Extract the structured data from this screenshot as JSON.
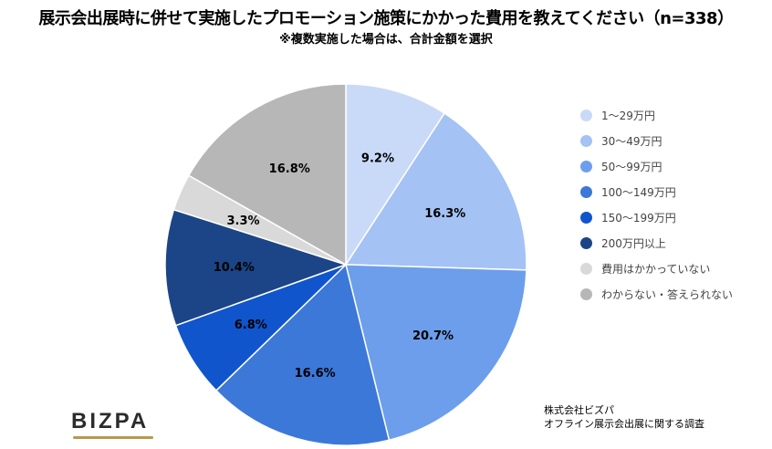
{
  "chart_data": {
    "type": "pie",
    "title": "展示会出展時に併せて実施したプロモーション施策にかかった費用を教えてください（n=338）",
    "subtitle": "※複数実施した場合は、合計金額を選択",
    "slices": [
      {
        "label": "1〜29万円",
        "value": 9.2,
        "display": "9.2%",
        "color": "#c9daf8"
      },
      {
        "label": "30〜49万円",
        "value": 16.3,
        "display": "16.3%",
        "color": "#a4c2f4"
      },
      {
        "label": "50〜99万円",
        "value": 20.7,
        "display": "20.7%",
        "color": "#6d9eeb"
      },
      {
        "label": "100〜149万円",
        "value": 16.6,
        "display": "16.6%",
        "color": "#3c78d8"
      },
      {
        "label": "150〜199万円",
        "value": 6.8,
        "display": "6.8%",
        "color": "#1155cc"
      },
      {
        "label": "200万円以上",
        "value": 10.4,
        "display": "10.4%",
        "color": "#1c4587"
      },
      {
        "label": "費用はかかっていない",
        "value": 3.3,
        "display": "3.3%",
        "color": "#d9d9d9"
      },
      {
        "label": "わからない・答えられない",
        "value": 16.8,
        "display": "16.8%",
        "color": "#b7b7b7"
      }
    ],
    "legend_position": "right"
  },
  "source": {
    "line1": "株式会社ビズパ",
    "line2": "オフライン展示会出展に関する調査"
  },
  "logo": {
    "text": "BIZPA",
    "icon": "bizpa-logo"
  }
}
